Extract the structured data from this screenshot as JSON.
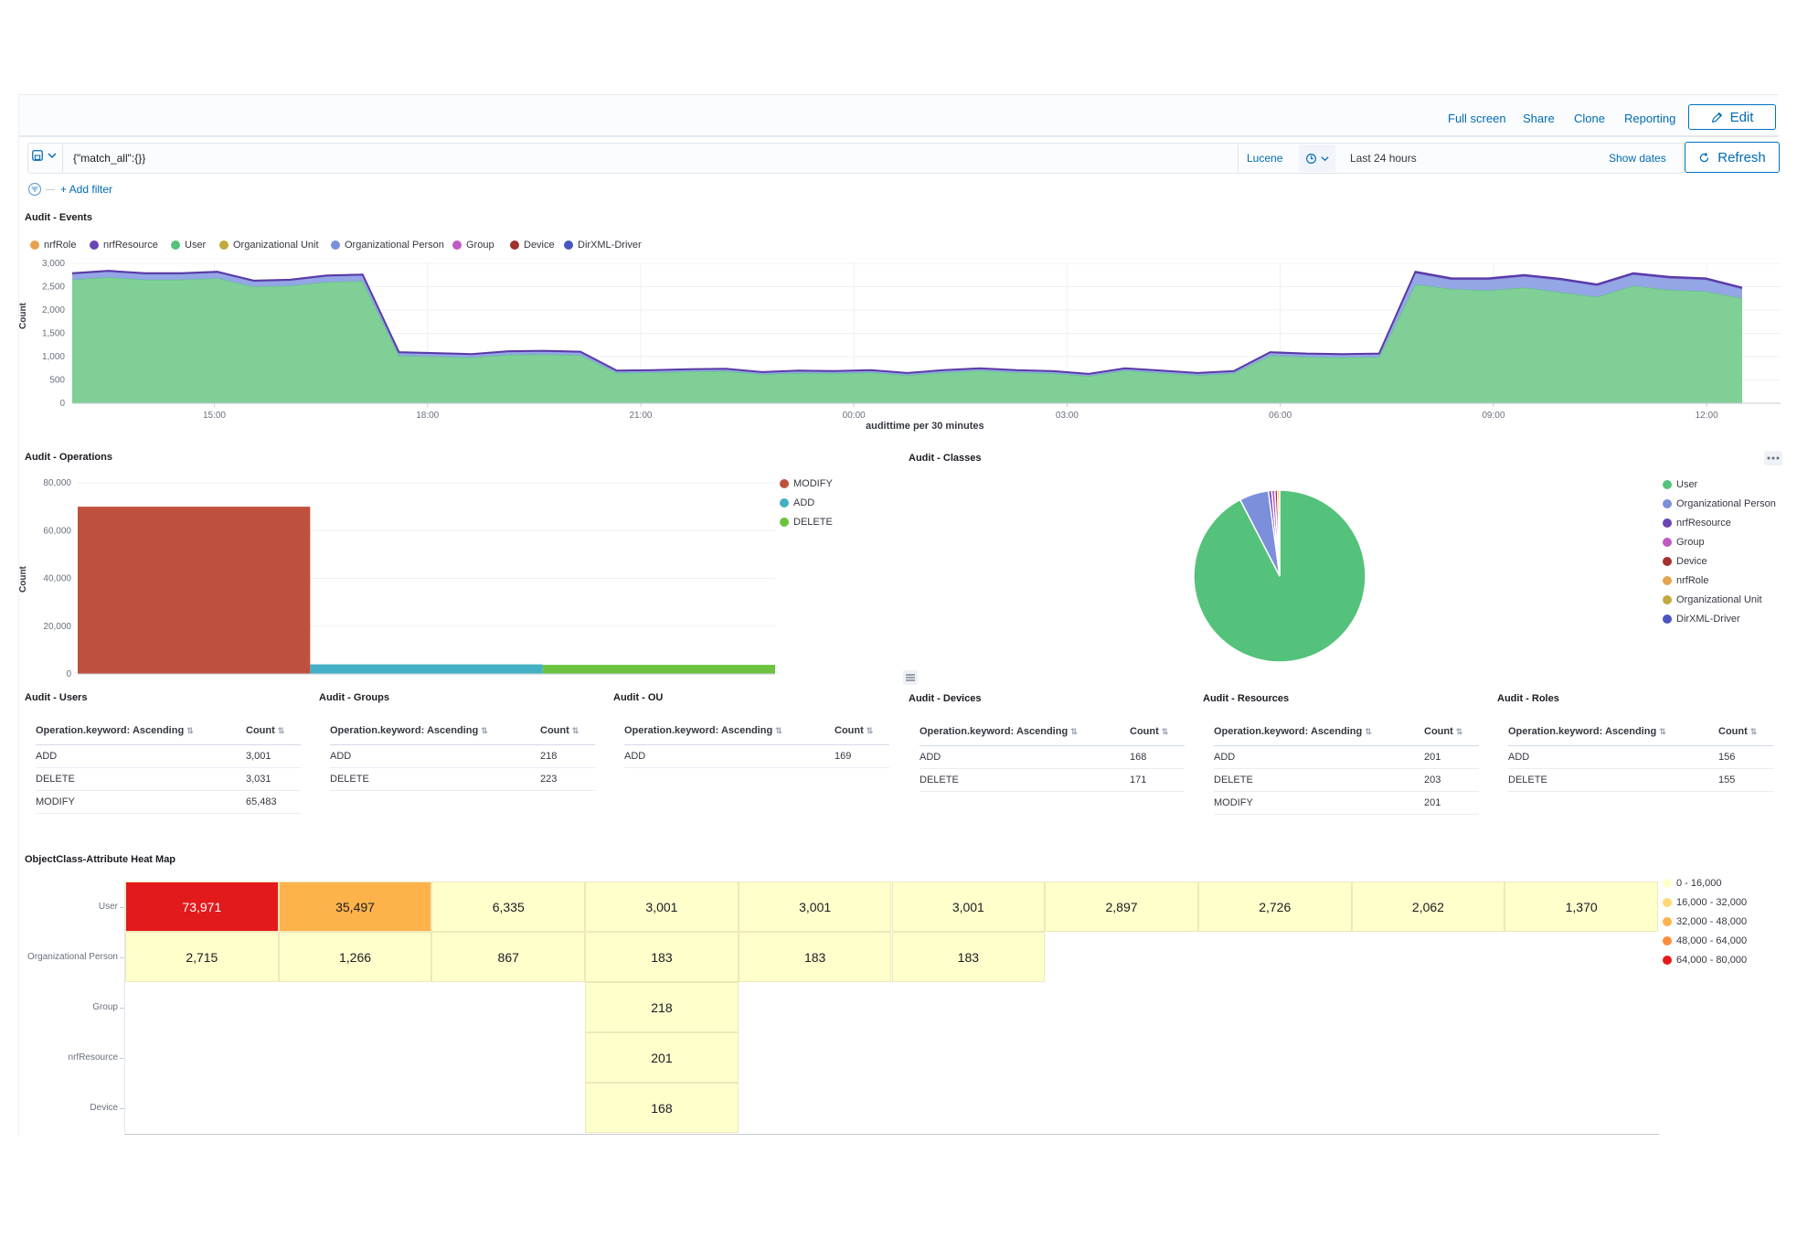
{
  "topnav": {
    "links": [
      "Full screen",
      "Share",
      "Clone",
      "Reporting"
    ],
    "edit_label": "Edit"
  },
  "query": {
    "value": "{\"match_all\":{}}",
    "language": "Lucene",
    "time_range": "Last 24 hours",
    "show_dates": "Show dates",
    "refresh_label": "Refresh",
    "add_filter": "+ Add filter"
  },
  "events": {
    "title": "Audit - Events",
    "legend": [
      {
        "name": "nrfRole",
        "color": "#e7a24f"
      },
      {
        "name": "nrfResource",
        "color": "#6a45b6"
      },
      {
        "name": "User",
        "color": "#54c27b"
      },
      {
        "name": "Organizational Unit",
        "color": "#c1a93b"
      },
      {
        "name": "Organizational Person",
        "color": "#7c8fdb"
      },
      {
        "name": "Group",
        "color": "#c159c4"
      },
      {
        "name": "Device",
        "color": "#a3302c"
      },
      {
        "name": "DirXML-Driver",
        "color": "#4a55c1"
      }
    ],
    "ylabel": "Count",
    "xlabel": "audittime per 30 minutes"
  },
  "operations": {
    "title": "Audit - Operations",
    "ylabel": "Count",
    "legend": [
      {
        "name": "MODIFY",
        "color": "#c0503e"
      },
      {
        "name": "ADD",
        "color": "#44b0c6"
      },
      {
        "name": "DELETE",
        "color": "#6bc33f"
      }
    ]
  },
  "classes": {
    "title": "Audit - Classes",
    "legend": [
      {
        "name": "User",
        "color": "#54c27b"
      },
      {
        "name": "Organizational Person",
        "color": "#7c8fdb"
      },
      {
        "name": "nrfResource",
        "color": "#6a45b6"
      },
      {
        "name": "Group",
        "color": "#c159c4"
      },
      {
        "name": "Device",
        "color": "#a3302c"
      },
      {
        "name": "nrfRole",
        "color": "#e7a24f"
      },
      {
        "name": "Organizational Unit",
        "color": "#c1a93b"
      },
      {
        "name": "DirXML-Driver",
        "color": "#4a55c1"
      }
    ]
  },
  "tables": [
    {
      "title": "Audit - Users",
      "col1": "Operation.keyword: Ascending",
      "col2": "Count",
      "rows": [
        [
          "ADD",
          "3,001"
        ],
        [
          "DELETE",
          "3,031"
        ],
        [
          "MODIFY",
          "65,483"
        ]
      ]
    },
    {
      "title": "Audit - Groups",
      "col1": "Operation.keyword: Ascending",
      "col2": "Count",
      "rows": [
        [
          "ADD",
          "218"
        ],
        [
          "DELETE",
          "223"
        ]
      ]
    },
    {
      "title": "Audit - OU",
      "col1": "Operation.keyword: Ascending",
      "col2": "Count",
      "rows": [
        [
          "ADD",
          "169"
        ]
      ]
    },
    {
      "title": "Audit - Devices",
      "col1": "Operation.keyword: Ascending",
      "col2": "Count",
      "rows": [
        [
          "ADD",
          "168"
        ],
        [
          "DELETE",
          "171"
        ]
      ]
    },
    {
      "title": "Audit - Resources",
      "col1": "Operation.keyword: Ascending",
      "col2": "Count",
      "rows": [
        [
          "ADD",
          "201"
        ],
        [
          "DELETE",
          "203"
        ],
        [
          "MODIFY",
          "201"
        ]
      ]
    },
    {
      "title": "Audit - Roles",
      "col1": "Operation.keyword: Ascending",
      "col2": "Count",
      "rows": [
        [
          "ADD",
          "156"
        ],
        [
          "DELETE",
          "155"
        ]
      ]
    }
  ],
  "heatmap": {
    "title": "ObjectClass-Attribute Heat Map",
    "legend": [
      {
        "name": "0 - 16,000",
        "color": "#ffffcc"
      },
      {
        "name": "16,000 - 32,000",
        "color": "#fed976"
      },
      {
        "name": "32,000 - 48,000",
        "color": "#feb24c"
      },
      {
        "name": "48,000 - 64,000",
        "color": "#fd8d3c"
      },
      {
        "name": "64,000 - 80,000",
        "color": "#e31a1c"
      }
    ]
  },
  "chart_data": [
    {
      "type": "area",
      "title": "Audit - Events",
      "ylabel": "Count",
      "xlabel": "audittime per 30 minutes",
      "ylim": [
        0,
        3000
      ],
      "yticks": [
        "0",
        "500",
        "1,000",
        "1,500",
        "2,000",
        "2,500",
        "3,000"
      ],
      "xticks": [
        "15:00",
        "18:00",
        "21:00",
        "00:00",
        "03:00",
        "06:00",
        "09:00",
        "12:00"
      ],
      "x_start_hour": 13.0,
      "x_end_hour": 36.5,
      "series": [
        {
          "name": "User",
          "values": [
            2650,
            2700,
            2650,
            2650,
            2680,
            2500,
            2520,
            2600,
            2620,
            1020,
            1000,
            980,
            1040,
            1050,
            1030,
            650,
            660,
            680,
            690,
            620,
            650,
            640,
            660,
            600,
            660,
            700,
            660,
            640,
            580,
            700,
            650,
            600,
            640,
            1020,
            990,
            980,
            990,
            2550,
            2450,
            2420,
            2480,
            2380,
            2280,
            2520,
            2430,
            2400,
            2250
          ]
        },
        {
          "name": "Organizational Person",
          "values": [
            120,
            120,
            120,
            120,
            120,
            110,
            110,
            120,
            120,
            60,
            60,
            60,
            60,
            60,
            60,
            40,
            40,
            40,
            40,
            40,
            40,
            40,
            40,
            40,
            40,
            40,
            40,
            40,
            40,
            40,
            40,
            40,
            40,
            60,
            60,
            60,
            60,
            240,
            200,
            230,
            240,
            260,
            240,
            240,
            250,
            250,
            200
          ]
        },
        {
          "name": "nrfResource",
          "values": [
            20,
            20,
            20,
            20,
            20,
            20,
            20,
            20,
            20,
            15,
            15,
            15,
            15,
            15,
            15,
            10,
            10,
            10,
            10,
            10,
            10,
            10,
            10,
            10,
            10,
            10,
            10,
            10,
            10,
            10,
            10,
            10,
            10,
            15,
            15,
            15,
            15,
            30,
            30,
            30,
            30,
            30,
            30,
            30,
            30,
            30,
            30
          ]
        }
      ]
    },
    {
      "type": "bar",
      "title": "Audit - Operations",
      "ylabel": "Count",
      "categories": [
        "MODIFY",
        "ADD",
        "DELETE"
      ],
      "values": [
        70000,
        4000,
        3800
      ],
      "ylim": [
        0,
        80000
      ],
      "yticks": [
        "0",
        "20,000",
        "40,000",
        "60,000",
        "80,000"
      ]
    },
    {
      "type": "pie",
      "title": "Audit - Classes",
      "labels": [
        "User",
        "Organizational Person",
        "nrfResource",
        "Group",
        "Device",
        "nrfRole"
      ],
      "values": [
        92.4,
        5.5,
        0.6,
        0.6,
        0.5,
        0.4
      ]
    },
    {
      "type": "heatmap",
      "title": "ObjectClass-Attribute Heat Map",
      "rows": [
        "User",
        "Organizational Person",
        "Group",
        "nrfResource",
        "Device"
      ],
      "cells": [
        {
          "row": 0,
          "col": 0,
          "value": 73971,
          "label": "73,971"
        },
        {
          "row": 0,
          "col": 1,
          "value": 35497,
          "label": "35,497"
        },
        {
          "row": 0,
          "col": 2,
          "value": 6335,
          "label": "6,335"
        },
        {
          "row": 0,
          "col": 3,
          "value": 3001,
          "label": "3,001"
        },
        {
          "row": 0,
          "col": 4,
          "value": 3001,
          "label": "3,001"
        },
        {
          "row": 0,
          "col": 5,
          "value": 3001,
          "label": "3,001"
        },
        {
          "row": 0,
          "col": 6,
          "value": 2897,
          "label": "2,897"
        },
        {
          "row": 0,
          "col": 7,
          "value": 2726,
          "label": "2,726"
        },
        {
          "row": 0,
          "col": 8,
          "value": 2062,
          "label": "2,062"
        },
        {
          "row": 0,
          "col": 9,
          "value": 1370,
          "label": "1,370"
        },
        {
          "row": 1,
          "col": 0,
          "value": 2715,
          "label": "2,715"
        },
        {
          "row": 1,
          "col": 1,
          "value": 1266,
          "label": "1,266"
        },
        {
          "row": 1,
          "col": 2,
          "value": 867,
          "label": "867"
        },
        {
          "row": 1,
          "col": 3,
          "value": 183,
          "label": "183"
        },
        {
          "row": 1,
          "col": 4,
          "value": 183,
          "label": "183"
        },
        {
          "row": 1,
          "col": 5,
          "value": 183,
          "label": "183"
        },
        {
          "row": 2,
          "col": 3,
          "value": 218,
          "label": "218"
        },
        {
          "row": 3,
          "col": 3,
          "value": 201,
          "label": "201"
        },
        {
          "row": 4,
          "col": 3,
          "value": 168,
          "label": "168"
        }
      ]
    }
  ]
}
